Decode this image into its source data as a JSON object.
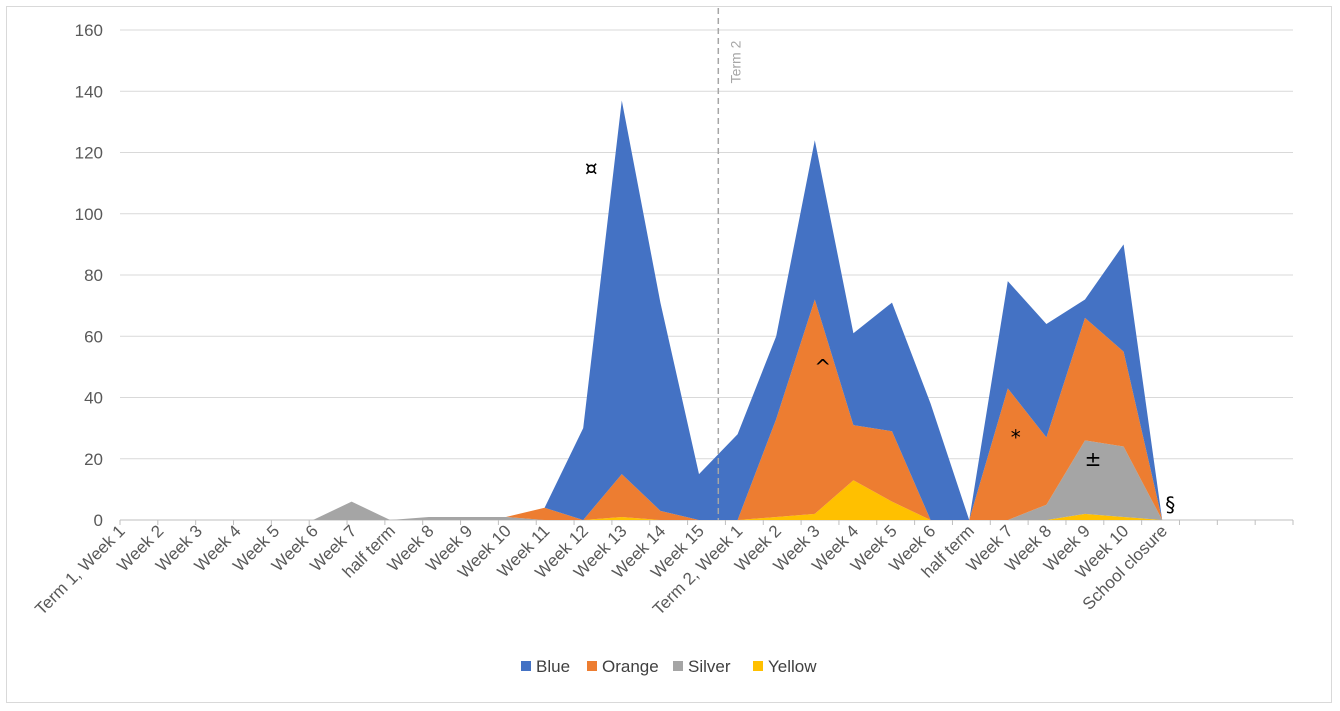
{
  "chart_data": {
    "type": "area",
    "stacked": true,
    "categories": [
      "Term 1, Week 1",
      "Week 2",
      "Week 3",
      "Week 4",
      "Week 5",
      "Week 6",
      "Week 7",
      "half term",
      "Week 8",
      "Week 9",
      "Week 10",
      "Week 11",
      "Week 12",
      "Week 13",
      "Week 14",
      "Week 15",
      "Term 2, Week 1",
      "Week 2",
      "Week 3",
      "Week 4",
      "Week 5",
      "Week 6",
      "half term",
      "Week 7",
      "Week 8",
      "Week 9",
      "Week 10",
      "School closure"
    ],
    "series": [
      {
        "name": "Yellow",
        "color": "#ffc000",
        "values": [
          0,
          0,
          0,
          0,
          0,
          0,
          0,
          0,
          0,
          0,
          0,
          0,
          0,
          1,
          0,
          0,
          0,
          1,
          2,
          13,
          6,
          0,
          0,
          0,
          0,
          2,
          1,
          0
        ]
      },
      {
        "name": "Silver",
        "color": "#a5a5a5",
        "values": [
          0,
          0,
          0,
          0,
          0,
          0,
          6,
          0,
          1,
          1,
          1,
          0,
          0,
          0,
          0,
          0,
          0,
          0,
          0,
          0,
          0,
          0,
          0,
          0,
          5,
          24,
          23,
          0
        ]
      },
      {
        "name": "Orange",
        "color": "#ed7d31",
        "values": [
          0,
          0,
          0,
          0,
          0,
          0,
          0,
          0,
          0,
          0,
          0,
          4,
          0,
          14,
          3,
          0,
          0,
          32,
          70,
          18,
          23,
          0,
          0,
          43,
          22,
          40,
          31,
          0
        ]
      },
      {
        "name": "Blue",
        "color": "#4472c4",
        "values": [
          0,
          0,
          0,
          0,
          0,
          0,
          0,
          0,
          0,
          0,
          0,
          0,
          30,
          122,
          68,
          15,
          28,
          27,
          52,
          30,
          42,
          38,
          0,
          35,
          37,
          6,
          35,
          0
        ]
      }
    ],
    "ylim": [
      0,
      160
    ],
    "yticks": [
      "0",
      "20",
      "40",
      "60",
      "80",
      "100",
      "120",
      "140",
      "160"
    ],
    "grid": true,
    "legend_position": "bottom",
    "legend_order": [
      "Blue",
      "Orange",
      "Silver",
      "Yellow"
    ],
    "vline": {
      "between": [
        "Week 15",
        "Term 2, Week 1"
      ],
      "label": "Term 2",
      "style": "dashed"
    },
    "annotations": [
      {
        "text": "*",
        "category": "Week 7",
        "y": 27
      },
      {
        "text": "¤",
        "category": "Week 12",
        "y": 115
      },
      {
        "text": "^",
        "category": "Week 3",
        "y": 50
      },
      {
        "text": "±",
        "category": "Week 9",
        "y": 20
      },
      {
        "text": "§",
        "category": "School closure",
        "y": 5
      }
    ]
  }
}
